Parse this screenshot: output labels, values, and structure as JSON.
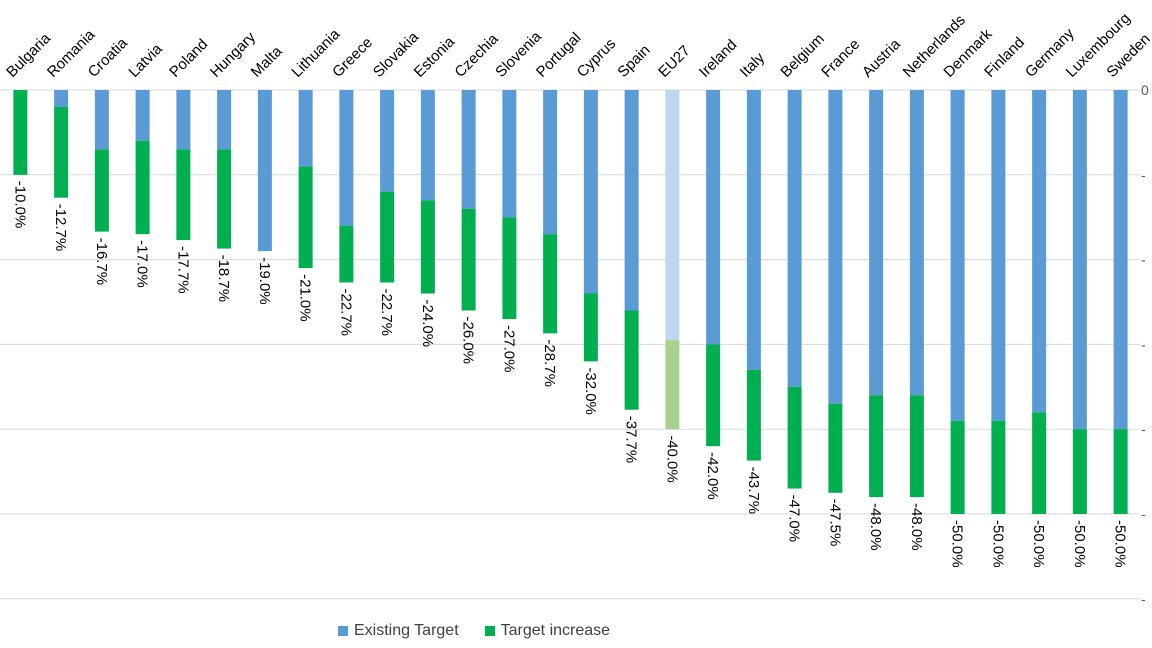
{
  "chart_data": {
    "type": "bar",
    "stacked": true,
    "title": "",
    "xlabel": "",
    "ylabel": "",
    "ylim": [
      -60,
      0
    ],
    "y_tick_step": 10,
    "y_tick_labels": [
      "0",
      "-",
      "-",
      "-",
      "-",
      "-",
      "-"
    ],
    "gridlines": true,
    "x_axis_position": "top",
    "legend_position": "bottom",
    "highlight_category": "EU27",
    "categories": [
      "Bulgaria",
      "Romania",
      "Croatia",
      "Latvia",
      "Poland",
      "Hungary",
      "Malta",
      "Lithuania",
      "Greece",
      "Slovakia",
      "Estonia",
      "Czechia",
      "Slovenia",
      "Portugal",
      "Cyprus",
      "Spain",
      "EU27",
      "Ireland",
      "Italy",
      "Belgium",
      "France",
      "Austria",
      "Netherlands",
      "Denmark",
      "Finland",
      "Germany",
      "Luxembourg",
      "Sweden"
    ],
    "series": [
      {
        "name": "Existing Target",
        "color": "#5b9bd5",
        "highlight_color": "#bdd7ee",
        "values": [
          0,
          -2,
          -7,
          -6,
          -7,
          -7,
          -19,
          -9,
          -16,
          -12,
          -13,
          -14,
          -15,
          -17,
          -24,
          -26,
          -29.5,
          -30,
          -33,
          -35,
          -37,
          -36,
          -36,
          -39,
          -39,
          -38,
          -40,
          -40
        ]
      },
      {
        "name": "Target increase",
        "color": "#00b050",
        "highlight_color": "#a9d18e",
        "values": [
          -10,
          -10.7,
          -9.7,
          -11,
          -10.7,
          -11.7,
          0,
          -12,
          -6.7,
          -10.7,
          -11,
          -12,
          -12,
          -11.7,
          -8,
          -11.7,
          -10.5,
          -12,
          -10.7,
          -12,
          -10.5,
          -12,
          -12,
          -11,
          -11,
          -12,
          -10,
          -10
        ]
      }
    ],
    "totals": [
      -10,
      -12.7,
      -16.7,
      -17,
      -17.7,
      -18.7,
      -19,
      -21,
      -22.7,
      -22.7,
      -24,
      -26,
      -27,
      -28.7,
      -32,
      -37.7,
      -40,
      -42,
      -43.7,
      -47,
      -47.5,
      -48,
      -48,
      -50,
      -50,
      -50,
      -50,
      -50
    ],
    "data_labels": [
      "-10.0%",
      "-12.7%",
      "-16.7%",
      "-17.0%",
      "-17.7%",
      "-18.7%",
      "-19.0%",
      "-21.0%",
      "-22.7%",
      "-22.7%",
      "-24.0%",
      "-26.0%",
      "-27.0%",
      "-28.7%",
      "-32.0%",
      "-37.7%",
      "-40.0%",
      "-42.0%",
      "-43.7%",
      "-47.0%",
      "-47.5%",
      "-48.0%",
      "-48.0%",
      "-50.0%",
      "-50.0%",
      "-50.0%",
      "-50.0%",
      "-50.0%"
    ]
  },
  "legend": {
    "existing_label": "Existing Target",
    "increase_label": "Target increase"
  }
}
